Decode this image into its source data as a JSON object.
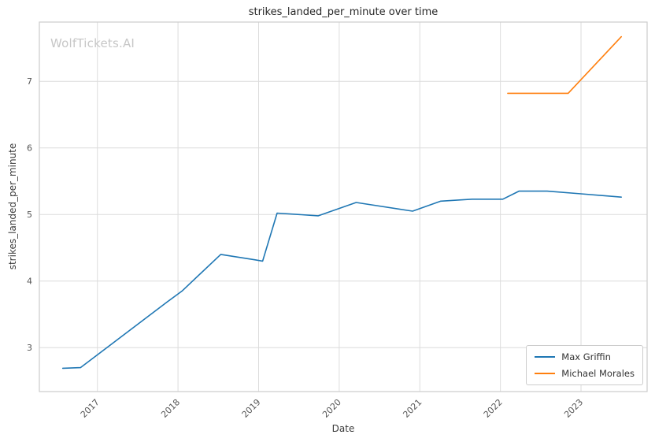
{
  "watermark": "WolfTickets.AI",
  "chart_data": {
    "type": "line",
    "title": "strikes_landed_per_minute over time",
    "xlabel": "Date",
    "ylabel": "strikes_landed_per_minute",
    "xlim": [
      2016.28,
      2023.82
    ],
    "ylim": [
      2.34,
      7.89
    ],
    "x_ticks": [
      2017,
      2018,
      2019,
      2020,
      2021,
      2022,
      2023
    ],
    "y_ticks": [
      3,
      4,
      5,
      6,
      7
    ],
    "grid": true,
    "legend_position": "lower right",
    "series": [
      {
        "name": "Max Griffin",
        "color": "#1f77b4",
        "points": [
          [
            2016.57,
            2.69
          ],
          [
            2016.79,
            2.7
          ],
          [
            2017.87,
            3.69
          ],
          [
            2018.05,
            3.85
          ],
          [
            2018.53,
            4.4
          ],
          [
            2018.95,
            4.32
          ],
          [
            2019.05,
            4.3
          ],
          [
            2019.23,
            5.02
          ],
          [
            2019.74,
            4.98
          ],
          [
            2020.21,
            5.18
          ],
          [
            2020.91,
            5.05
          ],
          [
            2021.26,
            5.2
          ],
          [
            2021.65,
            5.23
          ],
          [
            2022.03,
            5.23
          ],
          [
            2022.23,
            5.35
          ],
          [
            2022.58,
            5.35
          ],
          [
            2023.0,
            5.31
          ],
          [
            2023.5,
            5.26
          ]
        ]
      },
      {
        "name": "Michael Morales",
        "color": "#ff7f0e",
        "points": [
          [
            2022.09,
            6.82
          ],
          [
            2022.84,
            6.82
          ],
          [
            2023.5,
            7.67
          ]
        ]
      }
    ],
    "colors": {
      "grid": "#dcdcdc",
      "spine": "#cccccc",
      "tick_text": "#555555",
      "title_text": "#262626",
      "watermark_text": "#c7c7c7"
    }
  }
}
